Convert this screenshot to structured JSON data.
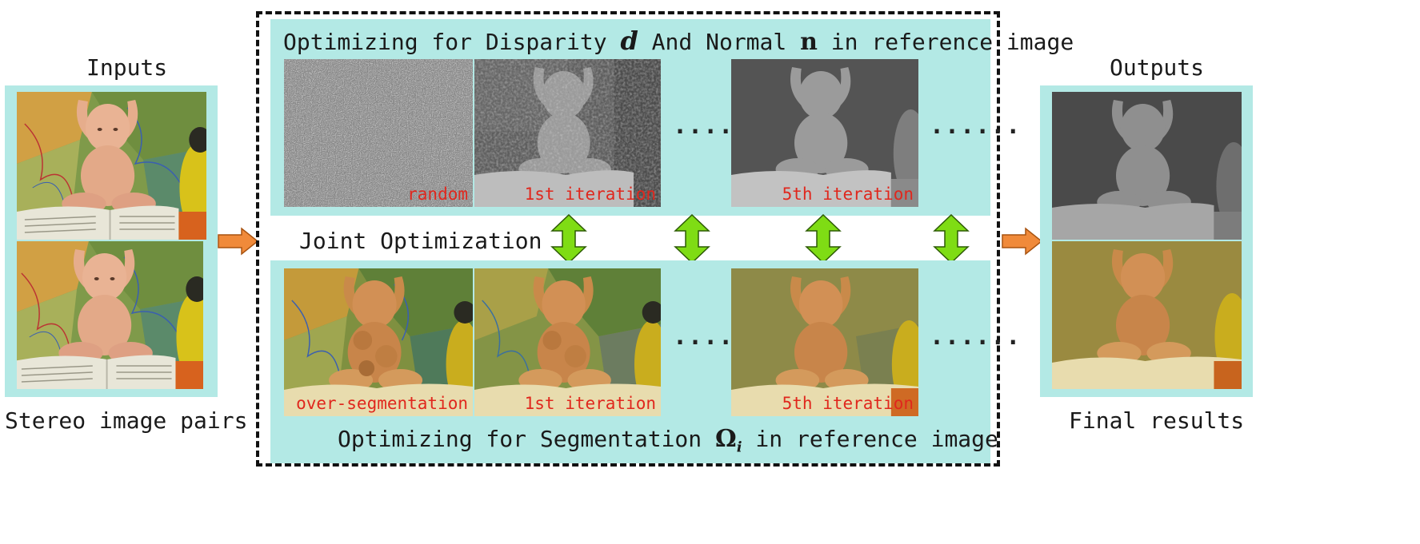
{
  "left": {
    "title": "Inputs",
    "caption": "Stereo image pairs"
  },
  "right": {
    "title": "Outputs",
    "caption": "Final results"
  },
  "top_panel": {
    "title_pre": "Optimizing for Disparity ",
    "title_sym1": "d",
    "title_mid": " And Normal ",
    "title_sym2": "n",
    "title_post": " in reference image",
    "frames": [
      "random",
      "1st iteration",
      "5th iteration"
    ],
    "ellipsis": "......"
  },
  "middle": {
    "label": "Joint Optimization"
  },
  "bottom_panel": {
    "title_pre": "Optimizing for Segmentation ",
    "title_sym": "Ω",
    "title_sub": "i",
    "title_post": " in reference image",
    "frames": [
      "over-segmentation",
      "1st iteration",
      "5th iteration"
    ],
    "ellipsis": "......"
  },
  "colors": {
    "panel": "#b3e9e5",
    "orange_arrow": "#f08a3a",
    "green_arrow": "#7fdc14",
    "caption_red": "#e0271d"
  }
}
